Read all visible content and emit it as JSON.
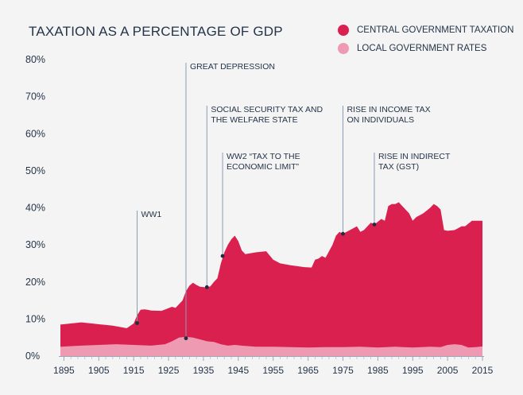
{
  "chart_data": {
    "type": "area",
    "title": "TAXATION AS A PERCENTAGE OF GDP",
    "xlabel": "",
    "ylabel": "",
    "xlim": [
      1894,
      2015
    ],
    "ylim": [
      0,
      80
    ],
    "x_ticks": [
      "1895",
      "1905",
      "1915",
      "1925",
      "1935",
      "1945",
      "1955",
      "1965",
      "1975",
      "1985",
      "1995",
      "2005",
      "2015"
    ],
    "y_ticks": [
      "0%",
      "10%",
      "20%",
      "30%",
      "40%",
      "50%",
      "60%",
      "70%",
      "80%"
    ],
    "colors": {
      "central": "#d9204e",
      "local": "#ef9ab3",
      "annotation": "#8a9bb0"
    },
    "series": [
      {
        "name": "CENTRAL GOVERNMENT TAXATION",
        "note": "total (central + local) height, stacked area",
        "x": [
          1894,
          1897,
          1900,
          1903,
          1906,
          1909,
          1912,
          1913,
          1915,
          1916,
          1917,
          1918,
          1919,
          1920,
          1923,
          1926,
          1927,
          1929,
          1930,
          1931,
          1932,
          1933,
          1934,
          1936,
          1937,
          1938,
          1939,
          1940,
          1941,
          1942,
          1943,
          1944,
          1945,
          1946,
          1947,
          1950,
          1953,
          1955,
          1957,
          1960,
          1964,
          1966,
          1967,
          1968,
          1969,
          1970,
          1972,
          1973,
          1974,
          1975,
          1976,
          1977,
          1979,
          1980,
          1981,
          1983,
          1984,
          1986,
          1987,
          1988,
          1989,
          1990,
          1991,
          1992,
          1994,
          1995,
          1996,
          1998,
          2000,
          2001,
          2002,
          2003,
          2004,
          2005,
          2007,
          2009,
          2010,
          2012,
          2014,
          2015
        ],
        "values": [
          8.5,
          8.8,
          9.1,
          8.8,
          8.5,
          8.2,
          7.7,
          7.5,
          8.8,
          11.0,
          12.5,
          12.6,
          12.5,
          12.3,
          12.2,
          13.3,
          13.0,
          15.0,
          17.5,
          19.0,
          19.8,
          19.2,
          18.7,
          18.5,
          18.8,
          20.0,
          21.0,
          25.0,
          28.0,
          30.0,
          31.5,
          32.5,
          31.0,
          28.5,
          27.5,
          28.0,
          28.3,
          26.0,
          25.0,
          24.5,
          24.0,
          23.9,
          26.0,
          26.3,
          27.0,
          26.5,
          30.0,
          32.5,
          33.5,
          33.0,
          33.5,
          34.0,
          35.0,
          33.5,
          34.0,
          36.0,
          35.5,
          37.0,
          36.5,
          40.5,
          41.0,
          41.0,
          41.5,
          40.5,
          38.5,
          36.5,
          37.5,
          38.5,
          40.0,
          41.0,
          40.5,
          39.5,
          34.0,
          33.8,
          34.0,
          35.0,
          35.0,
          36.5,
          36.5,
          36.5
        ]
      },
      {
        "name": "LOCAL GOVERNMENT RATES",
        "x": [
          1894,
          1900,
          1905,
          1910,
          1915,
          1920,
          1924,
          1926,
          1928,
          1930,
          1932,
          1934,
          1936,
          1938,
          1940,
          1942,
          1944,
          1946,
          1950,
          1955,
          1960,
          1965,
          1970,
          1975,
          1980,
          1985,
          1990,
          1995,
          2000,
          2003,
          2005,
          2007,
          2009,
          2011,
          2013,
          2015
        ],
        "values": [
          2.5,
          2.8,
          3.0,
          3.2,
          3.0,
          2.8,
          3.2,
          4.0,
          5.0,
          5.2,
          5.0,
          4.5,
          4.0,
          3.8,
          3.2,
          2.8,
          3.0,
          2.8,
          2.5,
          2.5,
          2.4,
          2.3,
          2.4,
          2.4,
          2.5,
          2.3,
          2.5,
          2.3,
          2.5,
          2.4,
          3.0,
          3.2,
          3.0,
          2.3,
          2.4,
          2.6
        ]
      }
    ],
    "annotations": [
      {
        "label": [
          "WW1"
        ],
        "year": 1916,
        "value": 8.9
      },
      {
        "label": [
          "GREAT DEPRESSION"
        ],
        "year": 1930,
        "value": 4.8
      },
      {
        "label": [
          "SOCIAL SECURITY TAX AND",
          "THE WELFARE STATE"
        ],
        "year": 1936,
        "value": 18.6
      },
      {
        "label": [
          "WW2 “TAX TO THE",
          "ECONOMIC LIMIT”"
        ],
        "year": 1940.5,
        "value": 27.0
      },
      {
        "label": [
          "RISE IN INCOME TAX",
          "ON INDIVIDUALS"
        ],
        "year": 1975,
        "value": 33.0
      },
      {
        "label": [
          "RISE IN INDIRECT",
          "TAX (GST)"
        ],
        "year": 1984,
        "value": 35.5
      }
    ]
  }
}
